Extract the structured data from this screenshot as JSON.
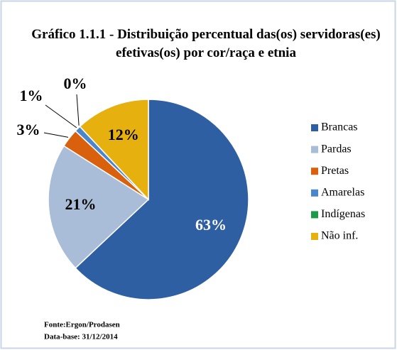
{
  "chart_data": {
    "type": "pie",
    "title": "Gráfico 1.1.1 - Distribuição percentual das(os) servidoras(es) efetivas(os) por cor/raça e etnia",
    "categories": [
      "Brancas",
      "Pardas",
      "Pretas",
      "Amarelas",
      "Indígenas",
      "Não inf."
    ],
    "values": [
      63,
      21,
      3,
      1,
      0,
      12
    ],
    "value_labels": [
      "63%",
      "21%",
      "3%",
      "1%",
      "0%",
      "12%"
    ],
    "colors": [
      "#2e5fa3",
      "#a9bdd8",
      "#d9600c",
      "#4a86cc",
      "#1c9a4a",
      "#e6b00f"
    ],
    "legend": "right",
    "notes": [
      "Fonte:Ergon/Prodasen",
      "Data-base: 31/12/2014"
    ]
  }
}
